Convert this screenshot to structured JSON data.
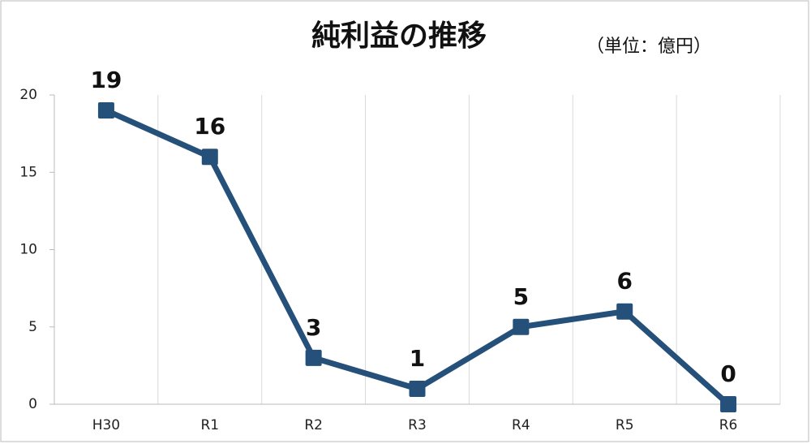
{
  "chart_data": {
    "type": "line",
    "title": "純利益の推移",
    "annotation": "（単位：億円）",
    "categories": [
      "H30",
      "R1",
      "R2",
      "R3",
      "R4",
      "R5",
      "R6"
    ],
    "values": [
      19,
      16,
      3,
      1,
      5,
      6,
      0
    ],
    "color": "#24507a",
    "ylim": [
      0,
      20
    ],
    "yticks": [
      0,
      5,
      10,
      15,
      20
    ]
  }
}
